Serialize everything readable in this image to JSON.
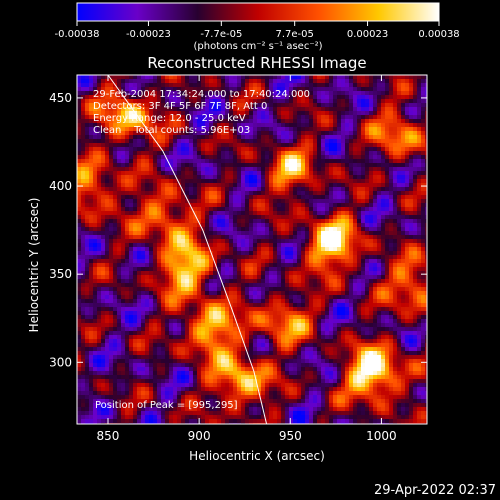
{
  "chart_data": {
    "type": "heatmap",
    "title": "Reconstructed RHESSI Image",
    "xlabel": "Heliocentric X (arcsec)",
    "ylabel": "Heliocentric Y (arcsec)",
    "xlim": [
      833,
      1025
    ],
    "ylim": [
      265,
      463
    ],
    "x_ticks": [
      850,
      900,
      950,
      1000
    ],
    "y_ticks": [
      300,
      350,
      400,
      450
    ],
    "colorbar": {
      "min": -0.00038,
      "max": 0.00038,
      "tick_labels": [
        "-0.00038",
        "-0.00023",
        "-7.7e-05",
        "7.7e-05",
        "0.00023",
        "0.00038"
      ],
      "tick_values": [
        -0.00038,
        -0.00023,
        -7.7e-05,
        7.7e-05,
        0.00023,
        0.00038
      ],
      "unit_text": "(photons cm⁻² s⁻¹ asec⁻²)",
      "colors": [
        "#0000ff",
        "#6a00c8",
        "#280030",
        "#c00000",
        "#ff5000",
        "#ffc800",
        "#ffffff"
      ]
    },
    "sources": [
      {
        "x": 995,
        "y": 295,
        "intensity": 1.0
      },
      {
        "x": 972,
        "y": 368,
        "intensity": 0.85
      },
      {
        "x": 892,
        "y": 355,
        "intensity": 0.8
      },
      {
        "x": 905,
        "y": 320,
        "intensity": 0.75
      },
      {
        "x": 922,
        "y": 290,
        "intensity": 0.75
      },
      {
        "x": 860,
        "y": 440,
        "intensity": 0.7
      },
      {
        "x": 840,
        "y": 400,
        "intensity": 0.6
      },
      {
        "x": 1010,
        "y": 430,
        "intensity": 0.55
      },
      {
        "x": 1018,
        "y": 345,
        "intensity": 0.6
      },
      {
        "x": 950,
        "y": 410,
        "intensity": 0.55
      },
      {
        "x": 880,
        "y": 385,
        "intensity": 0.6
      },
      {
        "x": 945,
        "y": 325,
        "intensity": 0.55
      }
    ],
    "limb_curve": [
      [
        850,
        463
      ],
      [
        880,
        420
      ],
      [
        902,
        375
      ],
      [
        918,
        330
      ],
      [
        930,
        295
      ],
      [
        937,
        265
      ]
    ],
    "annotations": {
      "time_range": "29-Feb-2004 17:34:24.000 to 17:40:24.000",
      "detectors": "Detectors: 3F 4F 5F 6F 7F 8F, Att 0",
      "energy_range": "Energy Range: 12.0 - 25.0 keV",
      "clean_info": "Clean    Total counts: 5.96E+03",
      "peak_position": "Position of Peak = [995,295]"
    }
  },
  "footer_timestamp": "29-Apr-2022 02:37"
}
